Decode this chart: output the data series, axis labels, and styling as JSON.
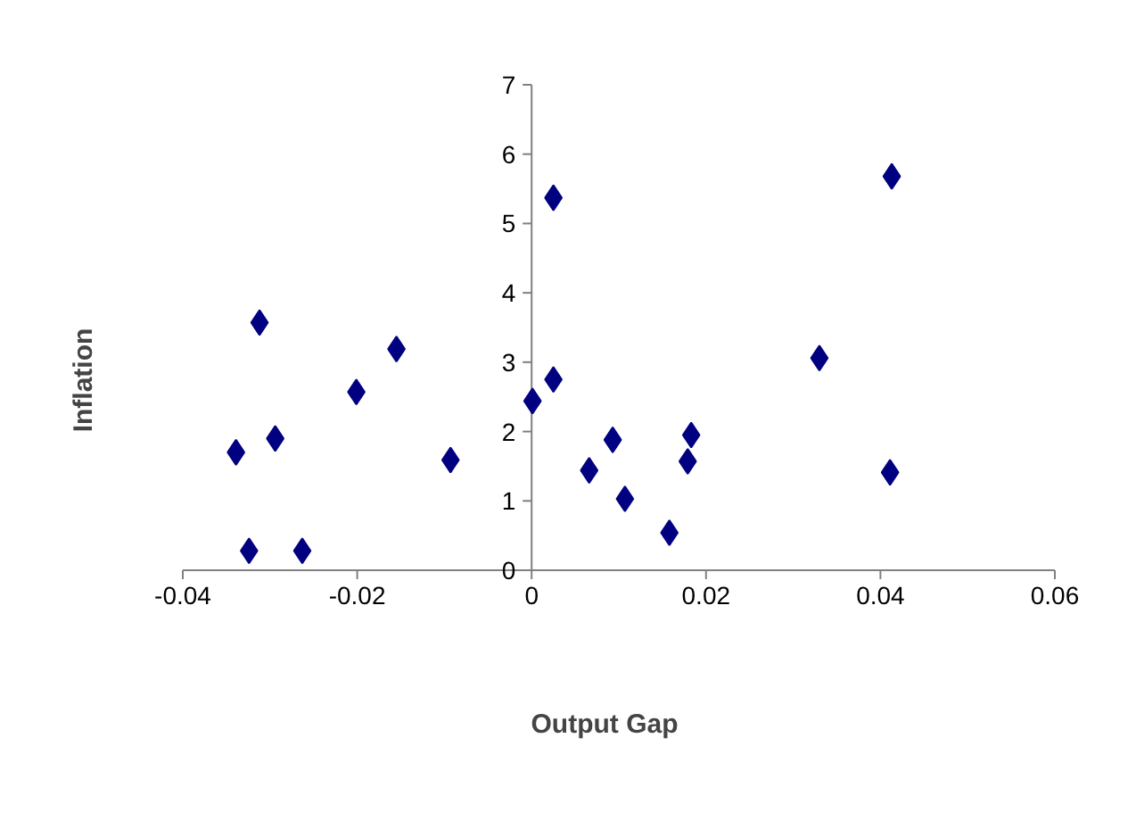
{
  "chart_data": {
    "type": "scatter",
    "xlabel": "Output Gap",
    "ylabel": "Inflation",
    "x": [
      -0.0339,
      -0.0324,
      -0.0312,
      -0.0294,
      -0.0263,
      -0.0201,
      -0.0155,
      -0.0093,
      0.0001,
      0.0025,
      0.0025,
      0.0066,
      0.0093,
      0.0107,
      0.0158,
      0.0179,
      0.0183,
      0.033,
      0.0411,
      0.0413
    ],
    "series": [
      {
        "color": "#000080",
        "values": [
          1.7,
          0.28,
          3.57,
          1.9,
          0.28,
          2.57,
          3.19,
          1.59,
          2.44,
          2.75,
          5.37,
          1.44,
          1.88,
          1.03,
          0.54,
          1.57,
          1.95,
          3.06,
          1.41,
          5.68
        ]
      }
    ],
    "xlim": [
      -0.04,
      0.06
    ],
    "xticks": [
      -0.04,
      -0.02,
      {
        "value": 0,
        "label": "0"
      },
      0.02,
      0.04,
      0.06
    ],
    "ylim": [
      0,
      7
    ],
    "yticks": [
      0,
      1,
      2,
      3,
      4,
      5,
      6,
      7
    ],
    "marker": "diamond",
    "grid": false
  }
}
